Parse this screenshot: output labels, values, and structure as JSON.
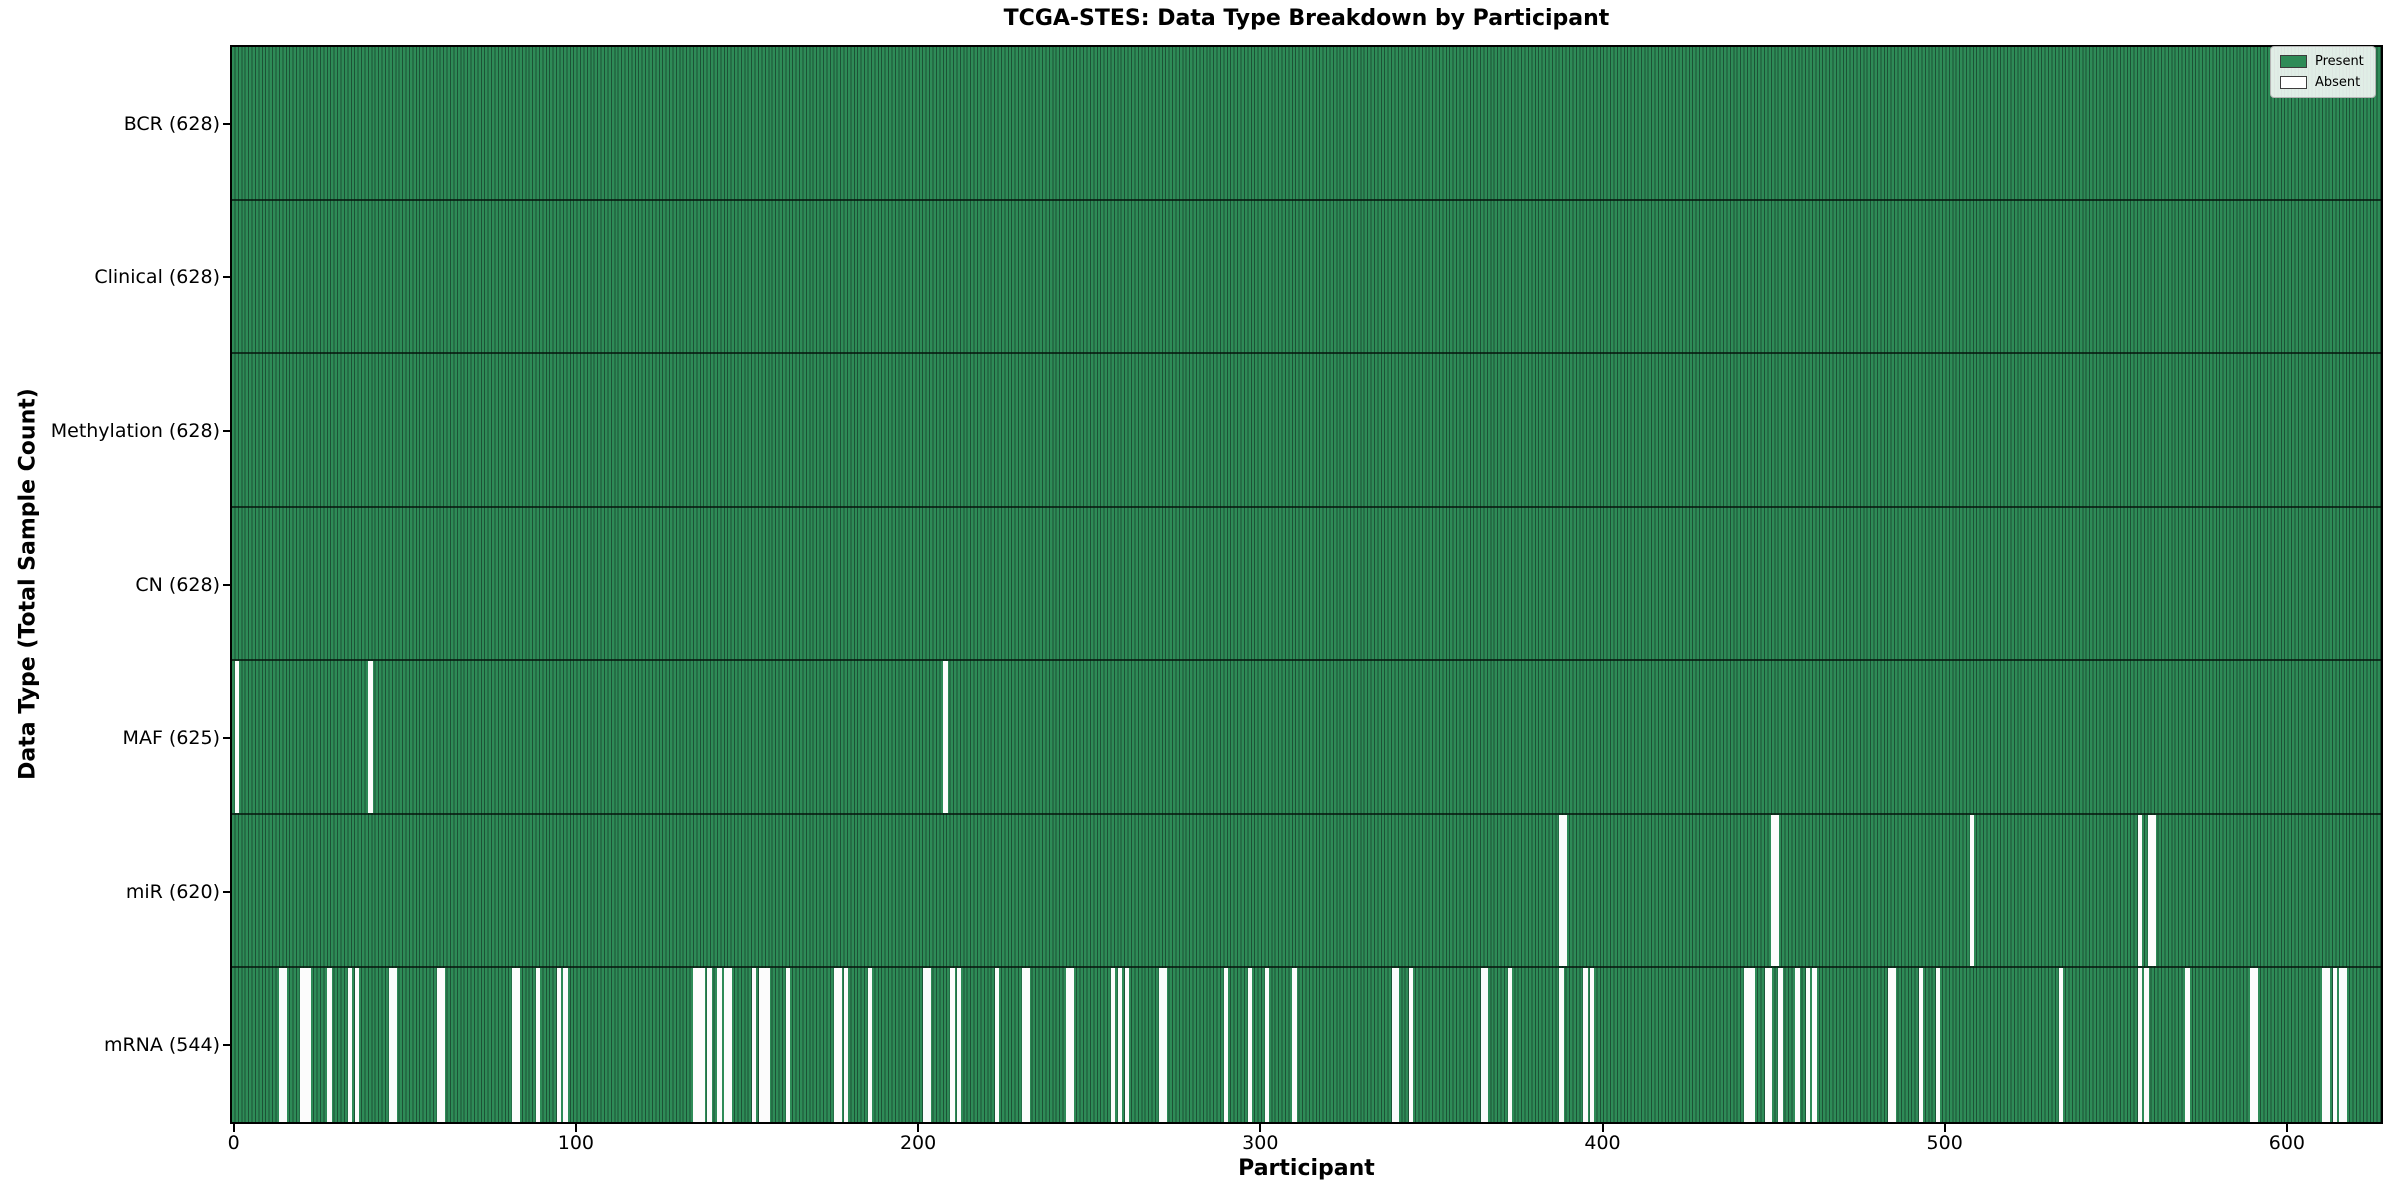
{
  "chart_data": {
    "type": "heatmap",
    "title": "TCGA-STES: Data Type Breakdown by Participant",
    "xlabel": "Participant",
    "ylabel": "Data Type (Total Sample Count)",
    "n_participants": 628,
    "x_ticks": [
      0,
      100,
      200,
      300,
      400,
      500,
      600
    ],
    "xlim": [
      -0.5,
      627.5
    ],
    "grid": false,
    "legend_position": "upper right",
    "legend": [
      {
        "label": "Present",
        "color": "#2e8b57"
      },
      {
        "label": "Absent",
        "color": "#ffffff"
      }
    ],
    "colors": {
      "present": "#2e8b57",
      "absent": "#ffffff",
      "bar_edge": "#1c5236",
      "spine": "#000000"
    },
    "rows": [
      {
        "label": "BCR (628)",
        "data_type": "BCR",
        "present_count": 628,
        "absent_count": 0,
        "absent": []
      },
      {
        "label": "Clinical (628)",
        "data_type": "Clinical",
        "present_count": 628,
        "absent_count": 0,
        "absent": []
      },
      {
        "label": "Methylation (628)",
        "data_type": "Methylation",
        "present_count": 628,
        "absent_count": 0,
        "absent": []
      },
      {
        "label": "CN (628)",
        "data_type": "CN",
        "present_count": 628,
        "absent_count": 0,
        "absent": []
      },
      {
        "label": "MAF (625)",
        "data_type": "MAF",
        "present_count": 625,
        "absent_count": 3,
        "absent": [
          1,
          40,
          208
        ]
      },
      {
        "label": "miR (620)",
        "data_type": "miR",
        "present_count": 620,
        "absent_count": 8,
        "absent": [
          388,
          389,
          450,
          451,
          508,
          557,
          560,
          561
        ]
      },
      {
        "label": "mRNA (544)",
        "data_type": "mRNA",
        "present_count": 544,
        "absent_count": 84,
        "absent": [
          14,
          15,
          20,
          21,
          22,
          28,
          34,
          36,
          46,
          47,
          60,
          61,
          82,
          83,
          89,
          95,
          97,
          135,
          136,
          137,
          139,
          142,
          144,
          145,
          152,
          154,
          155,
          156,
          162,
          176,
          177,
          179,
          186,
          202,
          203,
          210,
          212,
          223,
          231,
          232,
          244,
          245,
          257,
          259,
          261,
          271,
          272,
          290,
          297,
          302,
          310,
          339,
          340,
          344,
          365,
          366,
          373,
          388,
          395,
          397,
          442,
          443,
          444,
          448,
          449,
          452,
          457,
          460,
          462,
          484,
          485,
          493,
          498,
          534,
          557,
          559,
          571,
          590,
          591,
          611,
          612,
          614,
          616,
          617
        ]
      }
    ]
  }
}
